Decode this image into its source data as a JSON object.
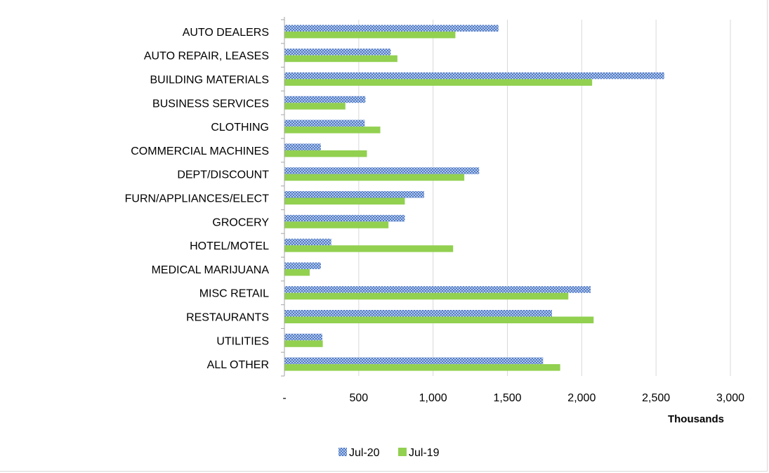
{
  "chart_data": {
    "type": "bar",
    "orientation": "horizontal",
    "categories": [
      "AUTO DEALERS",
      "AUTO REPAIR, LEASES",
      "BUILDING MATERIALS",
      "BUSINESS SERVICES",
      "CLOTHING",
      "COMMERCIAL MACHINES",
      "DEPT/DISCOUNT",
      "FURN/APPLIANCES/ELECT",
      "GROCERY",
      "HOTEL/MOTEL",
      "MEDICAL MARIJUANA",
      "MISC RETAIL",
      "RESTAURANTS",
      "UTILITIES",
      "ALL OTHER"
    ],
    "series": [
      {
        "name": "Jul-20",
        "color": "#4472c4",
        "pattern": "crosshatch",
        "values": [
          1440,
          715,
          2555,
          545,
          540,
          245,
          1310,
          940,
          810,
          315,
          245,
          2060,
          1800,
          255,
          1740
        ]
      },
      {
        "name": "Jul-19",
        "color": "#92d050",
        "pattern": "solid",
        "values": [
          1150,
          760,
          2070,
          410,
          645,
          555,
          1210,
          810,
          700,
          1135,
          170,
          1910,
          2080,
          258,
          1855
        ]
      }
    ],
    "xlim": [
      0,
      3000
    ],
    "xticks": [
      0,
      500,
      1000,
      1500,
      2000,
      2500,
      3000
    ],
    "xtick_labels": [
      "-",
      "500",
      "1,000",
      "1,500",
      "2,000",
      "2,500",
      "3,000"
    ],
    "xlabel": "Thousands",
    "grid": "vertical",
    "legend_position": "bottom"
  }
}
